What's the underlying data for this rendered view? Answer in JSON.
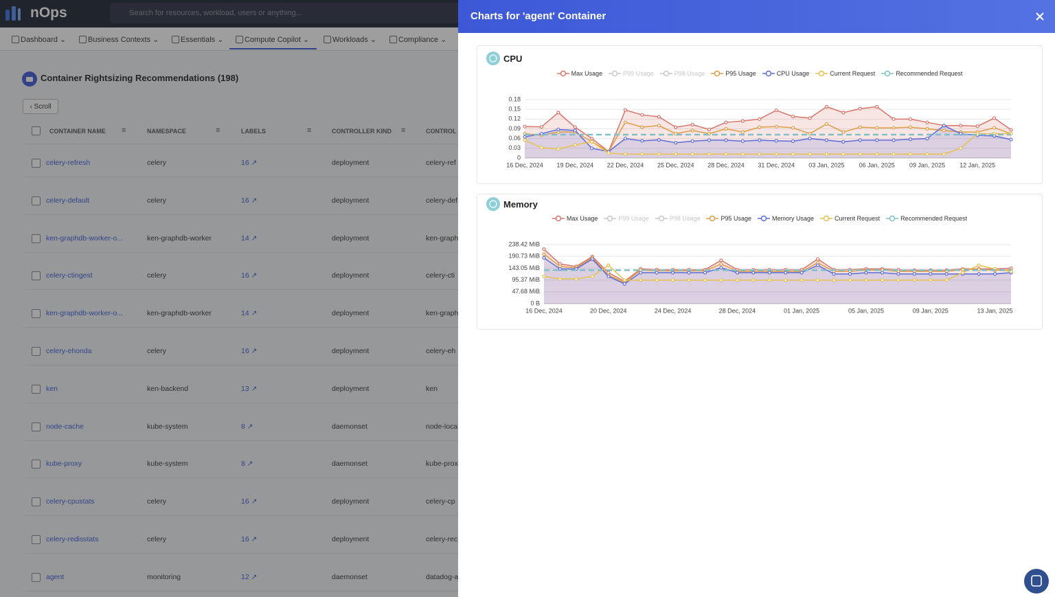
{
  "header": {
    "logo": "nOps",
    "search_placeholder": "Search for resources, workload, users or anything..."
  },
  "nav": [
    "Dashboard",
    "Business Contexts",
    "Essentials",
    "Compute Copilot",
    "Workloads",
    "Compliance"
  ],
  "page": {
    "title": "Container Rightsizing Recommendations (198)",
    "scroll_button": "Scroll",
    "table": {
      "columns": [
        "CONTAINER NAME",
        "NAMESPACE",
        "LABELS",
        "CONTROLLER KIND",
        "CONTROL"
      ],
      "rows": [
        [
          "celery-refresh",
          "celery",
          16,
          "deployment",
          "celery-ref"
        ],
        [
          "celery-default",
          "celery",
          16,
          "deployment",
          "celery-def"
        ],
        [
          "ken-graphdb-worker-o...",
          "ken-graphdb-worker",
          14,
          "deployment",
          "ken-graph"
        ],
        [
          "celery-ctingest",
          "celery",
          16,
          "deployment",
          "celery-cti"
        ],
        [
          "ken-graphdb-worker-o...",
          "ken-graphdb-worker",
          14,
          "deployment",
          "ken-graph"
        ],
        [
          "celery-ehonda",
          "celery",
          16,
          "deployment",
          "celery-eh"
        ],
        [
          "ken",
          "ken-backend",
          13,
          "deployment",
          "ken"
        ],
        [
          "node-cache",
          "kube-system",
          8,
          "daemonset",
          "node-loca"
        ],
        [
          "kube-proxy",
          "kube-system",
          8,
          "daemonset",
          "kube-prox"
        ],
        [
          "celery-cpustats",
          "celery",
          16,
          "deployment",
          "celery-cp"
        ],
        [
          "celery-redisstats",
          "celery",
          16,
          "deployment",
          "celery-rec"
        ],
        [
          "agent",
          "monitoring",
          12,
          "daemonset",
          "datadog-a"
        ]
      ]
    }
  },
  "modal": {
    "title": "Charts for 'agent' Container"
  },
  "chart_data": [
    {
      "type": "line",
      "title": "CPU",
      "grid": true,
      "categories": [
        "16 Dec, 2024",
        null,
        null,
        "19 Dec, 2024",
        null,
        null,
        "22 Dec, 2024",
        null,
        null,
        "25 Dec, 2024",
        null,
        null,
        "28 Dec, 2024",
        null,
        null,
        "31 Dec, 2024",
        null,
        null,
        "03 Jan, 2025",
        null,
        null,
        "06 Jan, 2025",
        null,
        null,
        "09 Jan, 2025",
        null,
        null,
        "12 Jan, 2025",
        null,
        null
      ],
      "ylim": [
        0,
        0.18
      ],
      "yticks": [
        0,
        0.03,
        0.06,
        0.09,
        0.12,
        0.15,
        0.18
      ],
      "series": [
        {
          "name": "Max Usage",
          "color": "#d9746a",
          "area": true,
          "values": [
            0.097,
            0.096,
            0.14,
            0.095,
            0.06,
            0.02,
            0.148,
            0.133,
            0.127,
            0.095,
            0.103,
            0.088,
            0.11,
            0.114,
            0.12,
            0.147,
            0.128,
            0.123,
            0.158,
            0.14,
            0.152,
            0.158,
            0.12,
            0.12,
            0.11,
            0.1,
            0.1,
            0.098,
            0.123,
            0.087
          ]
        },
        {
          "name": "P99 Usage",
          "color": "#c8c8c8",
          "hidden": true
        },
        {
          "name": "P98 Usage",
          "color": "#c8c8c8",
          "hidden": true
        },
        {
          "name": "P95 Usage",
          "color": "#dd9c45",
          "values": [
            0.075,
            0.07,
            0.08,
            0.08,
            0.05,
            0.02,
            0.11,
            0.095,
            0.1,
            0.075,
            0.085,
            0.075,
            0.09,
            0.08,
            0.095,
            0.097,
            0.093,
            0.075,
            0.105,
            0.08,
            0.095,
            0.093,
            0.093,
            0.095,
            0.09,
            0.085,
            0.08,
            0.08,
            0.093,
            0.075
          ]
        },
        {
          "name": "CPU Usage",
          "color": "#5b6bd8",
          "area": true,
          "values": [
            0.065,
            0.075,
            0.088,
            0.085,
            0.03,
            0.02,
            0.06,
            0.053,
            0.056,
            0.047,
            0.052,
            0.055,
            0.055,
            0.052,
            0.055,
            0.053,
            0.052,
            0.06,
            0.055,
            0.05,
            0.055,
            0.055,
            0.055,
            0.058,
            0.06,
            0.1,
            0.075,
            0.07,
            0.068,
            0.057
          ]
        },
        {
          "name": "Current Request",
          "color": "#e8c04a",
          "values": [
            0.055,
            0.032,
            0.028,
            0.04,
            0.05,
            0.015,
            0.012,
            0.012,
            0.012,
            0.012,
            0.012,
            0.012,
            0.012,
            0.012,
            0.012,
            0.012,
            0.012,
            0.012,
            0.012,
            0.012,
            0.012,
            0.012,
            0.012,
            0.012,
            0.012,
            0.012,
            0.03,
            0.075,
            0.075,
            0.075
          ]
        },
        {
          "name": "Recommended Request",
          "color": "#7fbfc8",
          "dashed": true,
          "values": [
            0.072,
            0.072,
            0.072,
            0.072,
            0.072,
            0.072,
            0.072,
            0.072,
            0.072,
            0.072,
            0.072,
            0.072,
            0.072,
            0.072,
            0.072,
            0.072,
            0.072,
            0.072,
            0.072,
            0.072,
            0.072,
            0.072,
            0.072,
            0.072,
            0.072,
            0.072,
            0.072,
            0.072,
            0.072,
            0.072
          ]
        }
      ]
    },
    {
      "type": "line",
      "title": "Memory",
      "grid": true,
      "categories": [
        "16 Dec, 2024",
        null,
        null,
        null,
        "20 Dec, 2024",
        null,
        null,
        null,
        "24 Dec, 2024",
        null,
        null,
        null,
        "28 Dec, 2024",
        null,
        null,
        null,
        "01 Jan, 2025",
        null,
        null,
        null,
        "05 Jan, 2025",
        null,
        null,
        null,
        "09 Jan, 2025",
        null,
        null,
        null,
        "13 Jan, 2025",
        null
      ],
      "ylim": [
        0,
        238.42
      ],
      "yticks": [
        {
          "value": 0,
          "label": "0 B"
        },
        {
          "value": 47.68,
          "label": "47.68 MiB"
        },
        {
          "value": 95.37,
          "label": "95.37 MiB"
        },
        {
          "value": 143.05,
          "label": "143.05 MiB"
        },
        {
          "value": 190.73,
          "label": "190.73 MiB"
        },
        {
          "value": 238.42,
          "label": "238.42 MiB"
        }
      ],
      "series": [
        {
          "name": "Max Usage",
          "color": "#d9746a",
          "area": true,
          "values": [
            220,
            160,
            150,
            190,
            125,
            90,
            140,
            137,
            137,
            137,
            137,
            175,
            137,
            137,
            137,
            137,
            137,
            180,
            137,
            137,
            140,
            140,
            137,
            135,
            135,
            135,
            140,
            140,
            140,
            143
          ]
        },
        {
          "name": "P99 Usage",
          "color": "#c8c8c8",
          "hidden": true
        },
        {
          "name": "P98 Usage",
          "color": "#c8c8c8",
          "hidden": true
        },
        {
          "name": "P95 Usage",
          "color": "#dd9c45",
          "values": [
            200,
            150,
            145,
            185,
            115,
            85,
            135,
            132,
            132,
            132,
            132,
            160,
            130,
            130,
            130,
            130,
            130,
            165,
            130,
            130,
            135,
            135,
            130,
            130,
            130,
            130,
            138,
            138,
            135,
            135
          ]
        },
        {
          "name": "Memory Usage",
          "color": "#5b6bd8",
          "area": true,
          "values": [
            185,
            140,
            140,
            180,
            110,
            80,
            125,
            125,
            125,
            125,
            125,
            145,
            125,
            125,
            125,
            125,
            125,
            155,
            120,
            120,
            125,
            125,
            120,
            120,
            120,
            120,
            120,
            120,
            120,
            125
          ]
        },
        {
          "name": "Current Request",
          "color": "#e8c04a",
          "values": [
            110,
            100,
            100,
            110,
            155,
            95,
            95,
            95,
            95,
            95,
            95,
            95,
            95,
            95,
            95,
            95,
            95,
            95,
            95,
            95,
            95,
            95,
            95,
            95,
            95,
            95,
            125,
            155,
            140,
            130
          ]
        },
        {
          "name": "Recommended Request",
          "color": "#7fbfc8",
          "dashed": true,
          "values": [
            135,
            135,
            135,
            135,
            135,
            135,
            135,
            135,
            135,
            135,
            135,
            135,
            135,
            135,
            135,
            135,
            135,
            135,
            135,
            135,
            135,
            135,
            135,
            135,
            135,
            135,
            135,
            135,
            135,
            135
          ]
        }
      ]
    }
  ]
}
